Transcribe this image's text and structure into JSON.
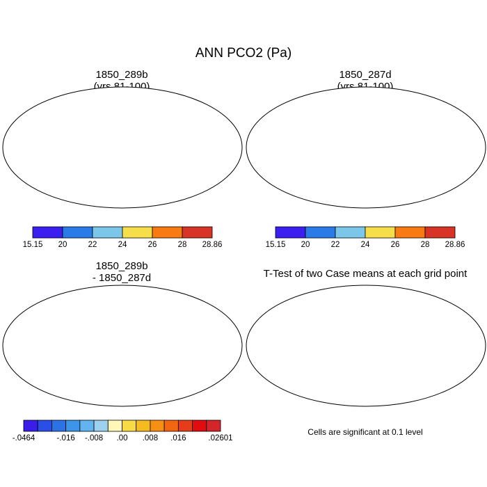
{
  "figure": {
    "title": "ANN PCO2 (Pa)"
  },
  "panels": [
    {
      "id": "case1",
      "title_line1": "1850_289b",
      "title_line2": "(yrs 81-100)"
    },
    {
      "id": "case2",
      "title_line1": "1850_287d",
      "title_line2": "(yrs 81-100)"
    },
    {
      "id": "diff",
      "title_line1": "1850_289b",
      "title_line2": "- 1850_287d"
    },
    {
      "id": "ttest",
      "title_line1": "T-Test of two Case means at each grid point",
      "title_line2": ""
    }
  ],
  "colorbar_abs": {
    "colors": [
      "#3b1ff0",
      "#2a7ae8",
      "#7cc6ea",
      "#f5de4a",
      "#f77a12",
      "#d73326"
    ],
    "tick_labels": [
      "15.15",
      "20",
      "22",
      "24",
      "26",
      "28",
      "28.86"
    ]
  },
  "colorbar_diff": {
    "colors": [
      "#3a1ee8",
      "#2a4fe8",
      "#2b72e5",
      "#3d95ea",
      "#62b3ee",
      "#9dd1f0",
      "#fff7b8",
      "#f8da45",
      "#f6bb21",
      "#f69014",
      "#f26612",
      "#e53c1a",
      "#e00c10",
      "#d3252a"
    ],
    "tick_labels": [
      "-.0464",
      "-.016",
      "-.008",
      ".00",
      ".008",
      ".016",
      ".02601"
    ]
  },
  "significance": {
    "color": "#ff0000",
    "note": "Cells are significant at 0.1 level"
  }
}
